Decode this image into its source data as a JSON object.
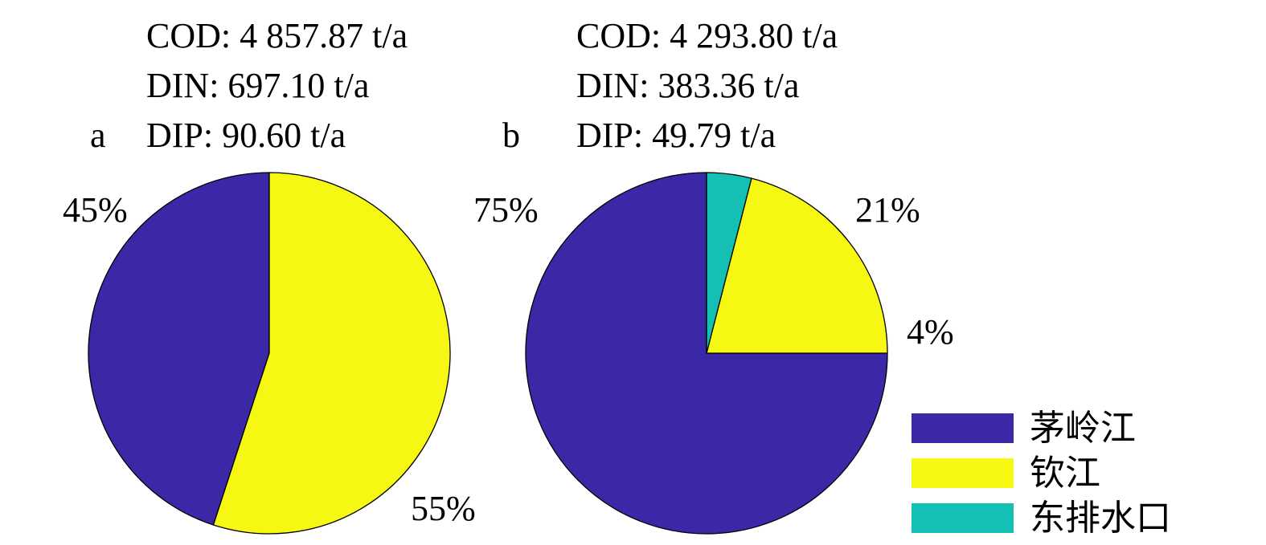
{
  "chart_data": [
    {
      "type": "pie",
      "panel_label": "a",
      "info_lines": [
        "COD: 4 857.87 t/a",
        "DIN: 697.10 t/a",
        "DIP: 90.60 t/a"
      ],
      "categories": [
        "茅岭江",
        "钦江"
      ],
      "values": [
        45,
        55
      ],
      "value_labels": [
        "45%",
        "55%"
      ]
    },
    {
      "type": "pie",
      "panel_label": "b",
      "info_lines": [
        "COD: 4 293.80 t/a",
        "DIN: 383.36 t/a",
        "DIP: 49.79 t/a"
      ],
      "categories": [
        "茅岭江",
        "钦江",
        "东排水口"
      ],
      "values": [
        75,
        21,
        4
      ],
      "value_labels": [
        "75%",
        "21%",
        "4%"
      ]
    }
  ],
  "legend": {
    "placement": "bottom-right",
    "items": [
      {
        "label": "茅岭江",
        "color": "#3b28a6"
      },
      {
        "label": "钦江",
        "color": "#f7f714"
      },
      {
        "label": "东排水口",
        "color": "#14bfb3"
      }
    ]
  }
}
